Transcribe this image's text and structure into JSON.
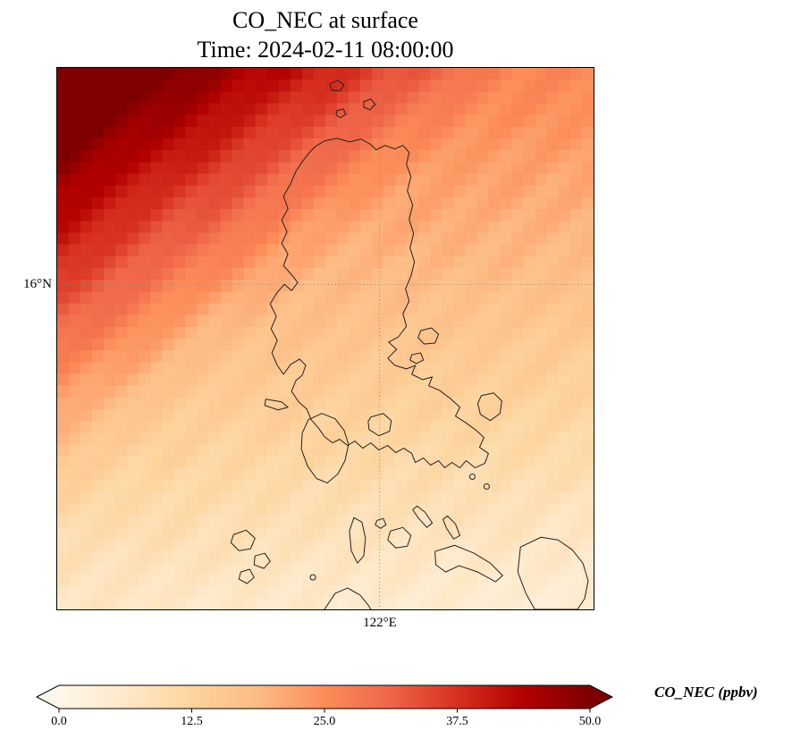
{
  "title": {
    "line1": "CO_NEC at surface",
    "line2": "Time: 2024-02-11 08:00:00"
  },
  "map": {
    "y_tick_label": "16°N",
    "x_tick_label": "122°E"
  },
  "colorbar": {
    "label": "CO_NEC (ppbv)",
    "ticks": [
      "0.0",
      "12.5",
      "25.0",
      "37.5",
      "50.0"
    ]
  },
  "chart_data": {
    "type": "heatmap",
    "title": "CO_NEC at surface",
    "subtitle": "Time: 2024-02-11 08:00:00",
    "variable": "CO_NEC",
    "units": "ppbv",
    "value_range": [
      0,
      50
    ],
    "colorbar_ticks": [
      0,
      12.5,
      25,
      37.5,
      50
    ],
    "colorbar_extend": "both",
    "colormap": {
      "name": "OrRd",
      "stops": [
        {
          "v": 0,
          "hex": "#fff7ec"
        },
        {
          "v": 6.25,
          "hex": "#fee8c8"
        },
        {
          "v": 12.5,
          "hex": "#fdd49e"
        },
        {
          "v": 18.75,
          "hex": "#fdbb84"
        },
        {
          "v": 25,
          "hex": "#fc8d59"
        },
        {
          "v": 31.25,
          "hex": "#ef6548"
        },
        {
          "v": 37.5,
          "hex": "#d7301f"
        },
        {
          "v": 43.75,
          "hex": "#b30000"
        },
        {
          "v": 50,
          "hex": "#7f0000"
        }
      ]
    },
    "y_axis": {
      "tick_label": "16°N",
      "position_frac_from_top": 0.4
    },
    "x_axis": {
      "tick_label": "122°E",
      "position_frac_from_left": 0.601
    },
    "grid_on": true,
    "texture": {
      "amplitude": 1.2,
      "wavelength": 0.13
    },
    "grid": {
      "rows": 15,
      "cols": 15,
      "description": "Estimated CO_NEC (ppbv) sampled on a 15x15 grid over the map, row 0 = north (top), col 0 = west (left). High plume in NW corner decreasing toward SE.",
      "values": [
        [
          58,
          55,
          53,
          50,
          47,
          44,
          42,
          39,
          36,
          33,
          31,
          28,
          26,
          26,
          26
        ],
        [
          54,
          51,
          48,
          46,
          43,
          40,
          37,
          35,
          32,
          29,
          27,
          25,
          25,
          25,
          24
        ],
        [
          50,
          47,
          44,
          42,
          39,
          36,
          33,
          31,
          28,
          25,
          24,
          23,
          23,
          23,
          23
        ],
        [
          46,
          43,
          40,
          37,
          35,
          32,
          29,
          27,
          24,
          22,
          22,
          22,
          22,
          21,
          21
        ],
        [
          42,
          39,
          36,
          33,
          31,
          28,
          25,
          22,
          21,
          21,
          21,
          20,
          20,
          20,
          20
        ],
        [
          38,
          35,
          32,
          29,
          27,
          24,
          21,
          20,
          19,
          19,
          19,
          19,
          19,
          18,
          18
        ],
        [
          33,
          31,
          28,
          25,
          22,
          20,
          18,
          18,
          18,
          18,
          17,
          17,
          17,
          17,
          17
        ],
        [
          29,
          27,
          24,
          21,
          18,
          17,
          17,
          17,
          16,
          16,
          16,
          16,
          15,
          15,
          15
        ],
        [
          25,
          22,
          20,
          17,
          16,
          15,
          15,
          15,
          15,
          14,
          14,
          14,
          14,
          14,
          13
        ],
        [
          21,
          18,
          16,
          14,
          14,
          14,
          14,
          13,
          13,
          13,
          13,
          13,
          12,
          12,
          12
        ],
        [
          17,
          14,
          13,
          13,
          12,
          12,
          12,
          12,
          12,
          11,
          11,
          11,
          11,
          11,
          10
        ],
        [
          13,
          12,
          11,
          11,
          11,
          11,
          10,
          10,
          10,
          10,
          10,
          9,
          9,
          9,
          9
        ],
        [
          10,
          10,
          10,
          10,
          9,
          9,
          9,
          9,
          8,
          8,
          8,
          8,
          8,
          7,
          7
        ],
        [
          9,
          8,
          8,
          8,
          8,
          8,
          7,
          7,
          7,
          7,
          6,
          6,
          6,
          6,
          6
        ],
        [
          7,
          7,
          7,
          6,
          6,
          6,
          6,
          6,
          5,
          5,
          5,
          5,
          4,
          4,
          4
        ]
      ]
    }
  }
}
